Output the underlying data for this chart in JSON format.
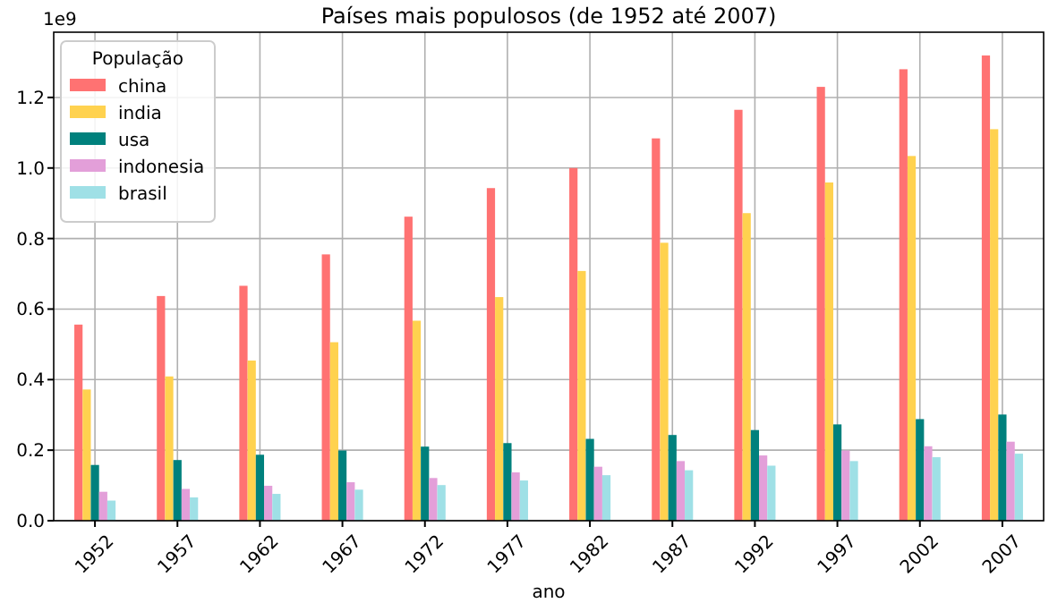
{
  "chart_data": {
    "type": "bar",
    "title": "Países mais populosos (de 1952 até 2007)",
    "xlabel": "ano",
    "legend_title": "População",
    "annotations": [
      "1e9"
    ],
    "categories": [
      "1952",
      "1957",
      "1962",
      "1967",
      "1972",
      "1977",
      "1982",
      "1987",
      "1992",
      "1997",
      "2002",
      "2007"
    ],
    "series": [
      {
        "name": "china",
        "color": "#ff7272",
        "values": [
          0.556,
          0.637,
          0.666,
          0.755,
          0.862,
          0.943,
          1.0,
          1.084,
          1.165,
          1.23,
          1.28,
          1.319
        ]
      },
      {
        "name": "india",
        "color": "#ffd24f",
        "values": [
          0.372,
          0.409,
          0.454,
          0.506,
          0.567,
          0.634,
          0.708,
          0.788,
          0.872,
          0.959,
          1.034,
          1.11
        ]
      },
      {
        "name": "usa",
        "color": "#00817d",
        "values": [
          0.158,
          0.172,
          0.187,
          0.199,
          0.21,
          0.22,
          0.232,
          0.243,
          0.257,
          0.273,
          0.288,
          0.301
        ]
      },
      {
        "name": "indonesia",
        "color": "#e39fd9",
        "values": [
          0.082,
          0.09,
          0.099,
          0.109,
          0.121,
          0.137,
          0.153,
          0.169,
          0.185,
          0.199,
          0.211,
          0.224
        ]
      },
      {
        "name": "brasil",
        "color": "#9fe0e6",
        "values": [
          0.057,
          0.066,
          0.076,
          0.088,
          0.101,
          0.114,
          0.129,
          0.143,
          0.156,
          0.169,
          0.18,
          0.19
        ]
      }
    ],
    "ylim": [
      0,
      1.385
    ],
    "yticks": [
      {
        "value": 0,
        "label": "0.0"
      },
      {
        "value": 0.2,
        "label": "0.2"
      },
      {
        "value": 0.4,
        "label": "0.4"
      },
      {
        "value": 0.6,
        "label": "0.6"
      },
      {
        "value": 0.8,
        "label": "0.8"
      },
      {
        "value": 1.0,
        "label": "1.0"
      },
      {
        "value": 1.2,
        "label": "1.2"
      }
    ],
    "grid": true,
    "legend": "top left"
  }
}
